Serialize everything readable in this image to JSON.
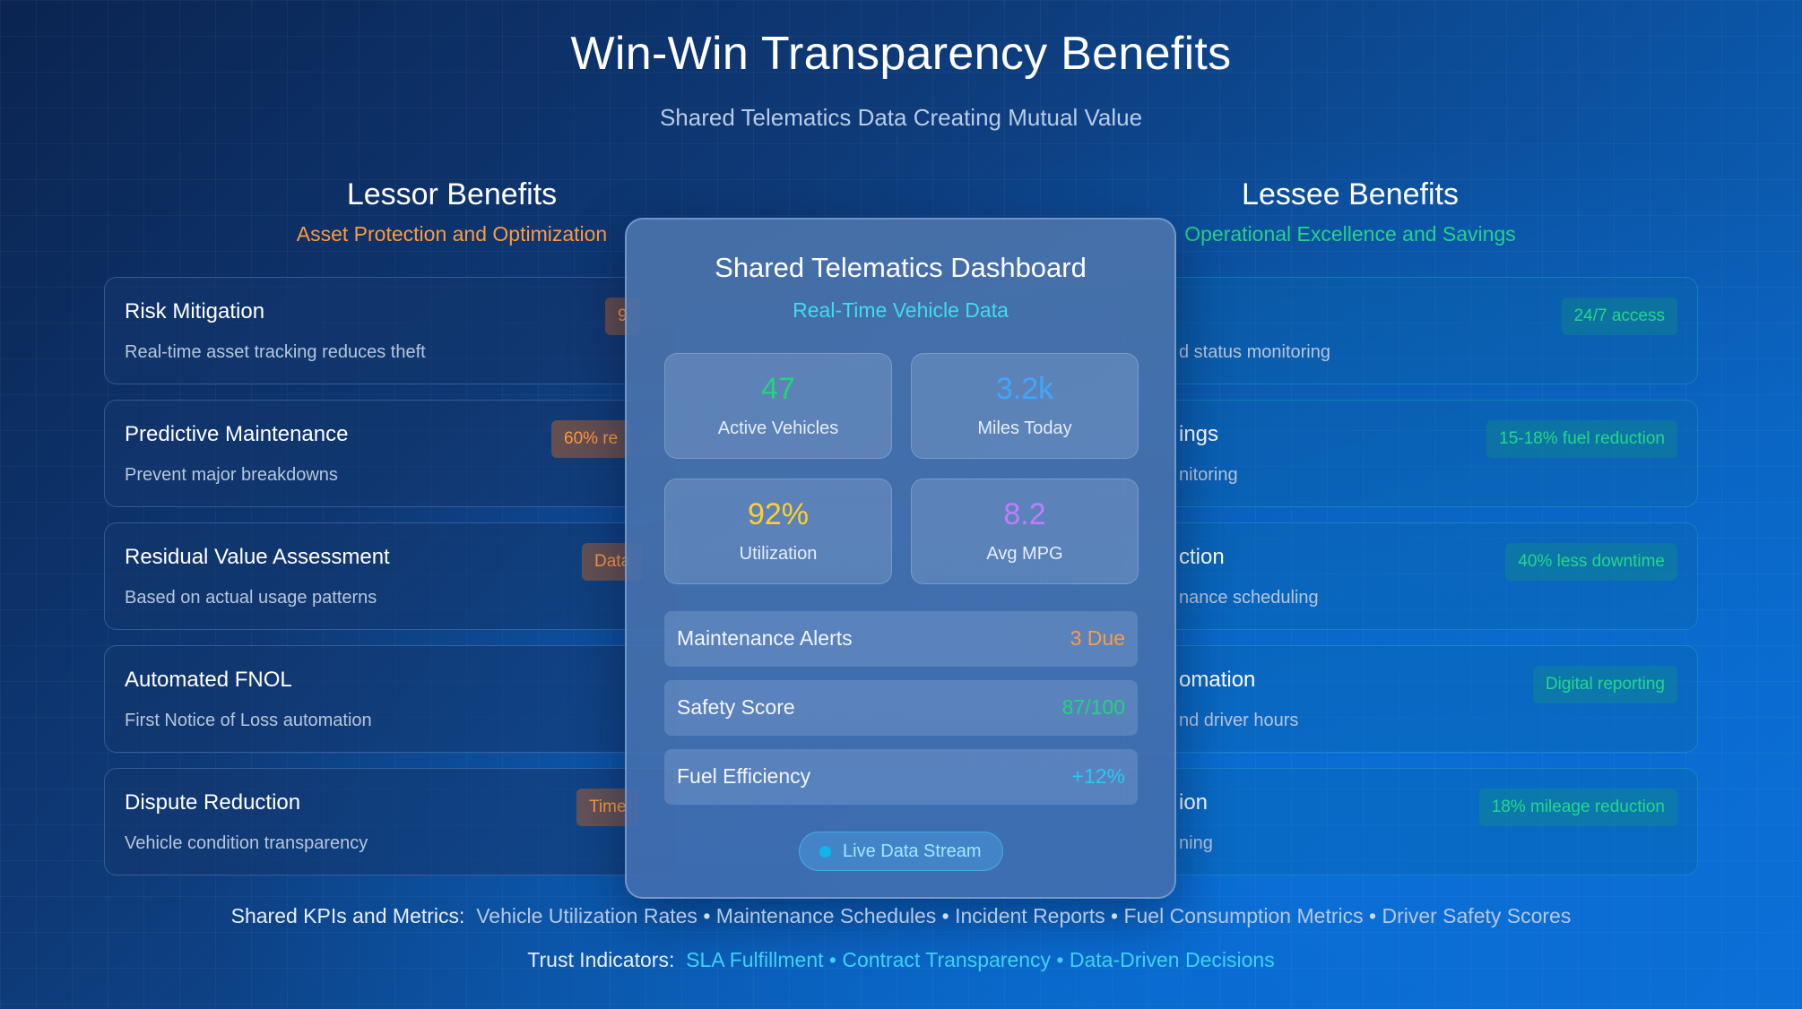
{
  "header": {
    "title": "Win-Win Transparency Benefits",
    "subtitle": "Shared Telematics Data Creating Mutual Value"
  },
  "lessor": {
    "heading": "Lessor Benefits",
    "subheading": "Asset Protection and Optimization",
    "cards": [
      {
        "title": "Risk Mitigation",
        "desc": "Real-time asset tracking reduces theft",
        "badge": "9"
      },
      {
        "title": "Predictive Maintenance",
        "desc": "Prevent major breakdowns",
        "badge": "60% re"
      },
      {
        "title": "Residual Value Assessment",
        "desc": "Based on actual usage patterns",
        "badge": "Data"
      },
      {
        "title": "Automated FNOL",
        "desc": "First Notice of Loss automation",
        "badge": ""
      },
      {
        "title": "Dispute Reduction",
        "desc": "Vehicle condition transparency",
        "badge": "Time"
      }
    ]
  },
  "lessee": {
    "heading": "Lessee Benefits",
    "subheading": "Operational Excellence and Savings",
    "cards": [
      {
        "title": "",
        "desc": "d status monitoring",
        "badge": "24/7 access"
      },
      {
        "title": "ings",
        "desc": "nitoring",
        "badge": "15-18% fuel reduction"
      },
      {
        "title": "ction",
        "desc": "nance scheduling",
        "badge": "40% less downtime"
      },
      {
        "title": "omation",
        "desc": "nd driver hours",
        "badge": "Digital reporting"
      },
      {
        "title": "ion",
        "desc": "ning",
        "badge": "18% mileage reduction"
      }
    ]
  },
  "dashboard": {
    "title": "Shared Telematics Dashboard",
    "subtitle": "Real-Time Vehicle Data",
    "stats": [
      {
        "value": "47",
        "label": "Active Vehicles",
        "color": "#22d47a"
      },
      {
        "value": "3.2k",
        "label": "Miles Today",
        "color": "#3fa6ff"
      },
      {
        "value": "92%",
        "label": "Utilization",
        "color": "#ffcf2e"
      },
      {
        "value": "8.2",
        "label": "Avg MPG",
        "color": "#c07cff"
      }
    ],
    "rows": [
      {
        "label": "Maintenance Alerts",
        "value": "3 Due",
        "color": "#ff9a42"
      },
      {
        "label": "Safety Score",
        "value": "87/100",
        "color": "#22d47a"
      },
      {
        "label": "Fuel Efficiency",
        "value": "+12%",
        "color": "#28c8f0"
      }
    ],
    "live_label": "Live Data Stream"
  },
  "footer": {
    "kpi_label": "Shared KPIs and Metrics:",
    "kpis": [
      "Vehicle Utilization Rates",
      "Maintenance Schedules",
      "Incident Reports",
      "Fuel Consumption Metrics",
      "Driver Safety Scores"
    ],
    "trust_label": "Trust Indicators:",
    "trust": [
      "SLA Fulfillment",
      "Contract Transparency",
      "Data-Driven Decisions"
    ]
  }
}
